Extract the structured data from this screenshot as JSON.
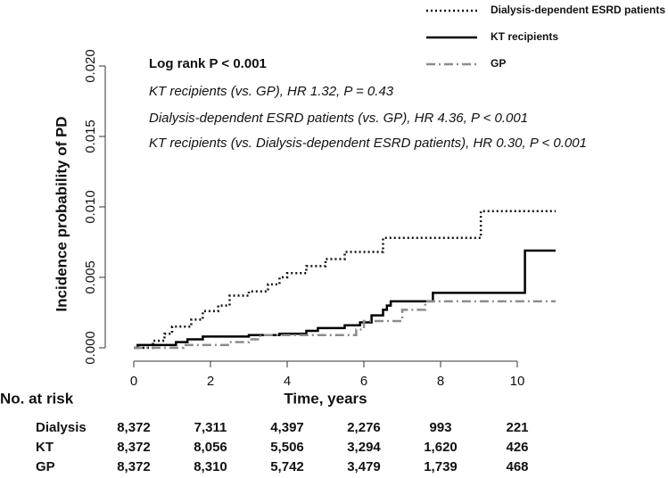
{
  "chart_data": {
    "type": "step",
    "ylabel": "Incidence probability of PD",
    "xlabel": "Time, years",
    "xlim": [
      -0.5,
      11.5
    ],
    "ylim": [
      -0.001,
      0.0205
    ],
    "xticks": [
      0,
      2,
      4,
      6,
      8,
      10
    ],
    "yticks": [
      {
        "value": 0,
        "label": "0.000"
      },
      {
        "value": 0.005,
        "label": "0.005"
      },
      {
        "value": 0.01,
        "label": "0.010"
      },
      {
        "value": 0.015,
        "label": "0.015"
      },
      {
        "value": 0.02,
        "label": "0.020"
      }
    ],
    "legend": "top-right",
    "annotations": [
      "Log rank P < 0.001",
      "KT recipients (vs. GP), HR 1.32, P = 0.43",
      "Dialysis-dependent ESRD patients  (vs. GP), HR 4.36, P < 0.001",
      "KT recipients (vs. Dialysis-dependent ESRD patients), HR 0.30, P < 0.001"
    ],
    "series": [
      {
        "name": "Dialysis-dependent ESRD patients",
        "color": "#111111",
        "dash": "2,3",
        "x": [
          0,
          0.5,
          0.8,
          1.0,
          1.5,
          1.8,
          2.2,
          2.5,
          3.0,
          3.5,
          3.8,
          4.0,
          4.5,
          5.0,
          5.5,
          6.5,
          9.05,
          11.0
        ],
        "values": [
          0,
          0.0005,
          0.001,
          0.0015,
          0.002,
          0.0026,
          0.003,
          0.0037,
          0.004,
          0.0045,
          0.005,
          0.0053,
          0.0058,
          0.0063,
          0.0068,
          0.0078,
          0.0097,
          0.0097
        ]
      },
      {
        "name": "KT recipients",
        "color": "#000000",
        "dash": "none",
        "x": [
          0,
          0.1,
          1.1,
          1.4,
          1.8,
          3.0,
          3.8,
          4.5,
          4.8,
          5.5,
          5.9,
          6.2,
          6.5,
          6.6,
          6.7,
          7.8,
          10.2,
          11.0
        ],
        "values": [
          0,
          0.0002,
          0.0004,
          0.0006,
          0.0008,
          0.0009,
          0.001,
          0.0012,
          0.0014,
          0.0016,
          0.0018,
          0.0023,
          0.0027,
          0.003,
          0.0033,
          0.0039,
          0.0069,
          0.0069
        ]
      },
      {
        "name": "GP",
        "color": "#8c8c8c",
        "dash": "10,4,2,4",
        "x": [
          0,
          1.3,
          2.5,
          3.0,
          3.3,
          5.8,
          6.0,
          7.0,
          7.6,
          11.0
        ],
        "values": [
          0,
          0.0002,
          0.0004,
          0.0006,
          0.0009,
          0.0013,
          0.0019,
          0.0027,
          0.0033,
          0.0033
        ]
      }
    ],
    "risk_table": {
      "title": "No. at risk",
      "rows": [
        {
          "name": "Dialysis",
          "values": [
            "8,372",
            "7,311",
            "4,397",
            "2,276",
            "993",
            "221"
          ]
        },
        {
          "name": "KT",
          "values": [
            "8,372",
            "8,056",
            "5,506",
            "3,294",
            "1,620",
            "426"
          ]
        },
        {
          "name": "GP",
          "values": [
            "8,372",
            "8,310",
            "5,742",
            "3,479",
            "1,739",
            "468"
          ]
        }
      ]
    }
  }
}
